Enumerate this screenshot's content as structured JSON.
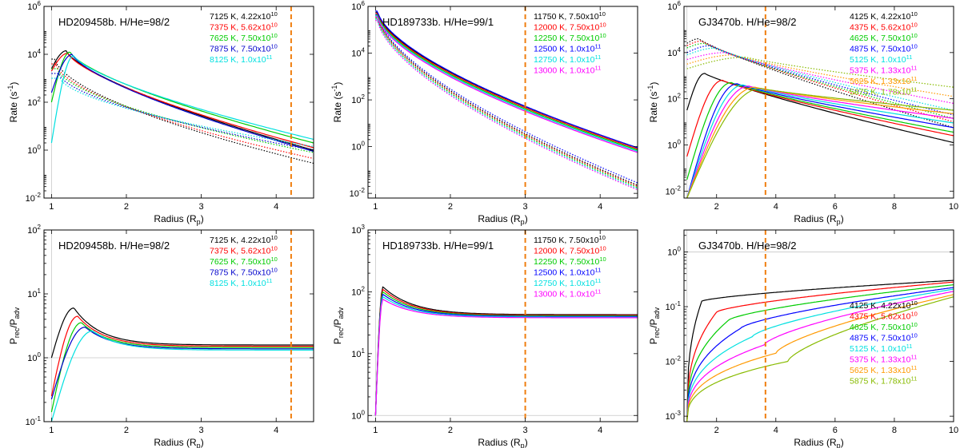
{
  "chart_data": [
    {
      "id": "p1",
      "type": "line",
      "yscale": "log",
      "title": "HD209458b. H/He=98/2",
      "xlabel": "Radius (R",
      "xlabel_sub": "p",
      "xlabel_end": ")",
      "ylabel": "Rate (s",
      "ylabel_sup": "-1",
      "ylabel_end": ")",
      "xlim": [
        0.9,
        4.5
      ],
      "ylim": [
        -2,
        6
      ],
      "xticks": [
        1,
        2,
        3,
        4
      ],
      "yticks": [
        -2,
        0,
        2,
        4,
        6
      ],
      "vline": 4.2,
      "refline_x": 1.0,
      "refline_y": null,
      "legend_pos": "top-right",
      "series": [
        {
          "name": "7125 K, 4.22x10",
          "exp": "10",
          "color": "#000000",
          "solid": {
            "peak_x": 1.2,
            "peak_y": 4.15,
            "start_y": 3.4,
            "end_y": 0.0,
            "width": 0.5,
            "plat": 0
          },
          "dotted": {
            "peak_x": 1.05,
            "peak_y": 3.8,
            "start_y": 3.8,
            "end_y": -0.55,
            "width": 0.2,
            "plat": 0
          }
        },
        {
          "name": "7375 K, 5.62x10",
          "exp": "10",
          "color": "#ff0000",
          "solid": {
            "peak_x": 1.22,
            "peak_y": 4.05,
            "start_y": 3.3,
            "end_y": 0.1,
            "width": 0.5,
            "plat": 0
          },
          "dotted": {
            "peak_x": 1.06,
            "peak_y": 3.6,
            "start_y": 3.6,
            "end_y": -0.35,
            "width": 0.2,
            "plat": 0
          }
        },
        {
          "name": "7625 K, 7.50x10",
          "exp": "10",
          "color": "#00cc00",
          "solid": {
            "peak_x": 1.25,
            "peak_y": 4.1,
            "start_y": 2.0,
            "end_y": 0.3,
            "width": 0.5,
            "plat": 0
          },
          "dotted": {
            "peak_x": 1.08,
            "peak_y": 3.4,
            "start_y": 3.4,
            "end_y": -0.1,
            "width": 0.2,
            "plat": 0
          }
        },
        {
          "name": "7875 K, 7.50x10",
          "exp": "10",
          "color": "#0000cc",
          "solid": {
            "peak_x": 1.28,
            "peak_y": 4.0,
            "start_y": 2.4,
            "end_y": -0.05,
            "width": 0.5,
            "plat": 0
          },
          "dotted": {
            "peak_x": 1.1,
            "peak_y": 3.2,
            "start_y": 3.2,
            "end_y": 0.0,
            "width": 0.2,
            "plat": 0
          }
        },
        {
          "name": "8125 K, 1.0x10",
          "exp": "11",
          "color": "#00e0e0",
          "solid": {
            "peak_x": 1.3,
            "peak_y": 3.95,
            "start_y": 0.3,
            "end_y": 0.45,
            "width": 0.5,
            "plat": 0
          },
          "dotted": {
            "peak_x": 1.12,
            "peak_y": 3.0,
            "start_y": 3.0,
            "end_y": 0.15,
            "width": 0.2,
            "plat": 0
          }
        }
      ]
    },
    {
      "id": "p2",
      "type": "line",
      "yscale": "log",
      "title": "HD189733b. H/He=99/1",
      "xlabel": "Radius (R",
      "xlabel_sub": "p",
      "xlabel_end": ")",
      "ylabel": "Rate (s",
      "ylabel_sup": "-1",
      "ylabel_end": ")",
      "xlim": [
        0.9,
        4.5
      ],
      "ylim": [
        -2.2,
        6
      ],
      "xticks": [
        1,
        2,
        3,
        4
      ],
      "yticks": [
        -2,
        0,
        2,
        4,
        6
      ],
      "vline": 3.0,
      "refline_x": 1.0,
      "refline_y": null,
      "legend_pos": "top-right",
      "series": [
        {
          "name": "11750 K, 7.50x10",
          "exp": "10",
          "color": "#000000",
          "solid": {
            "peak_x": 1.03,
            "peak_y": 5.75,
            "start_y": 5.75,
            "end_y": -0.05,
            "width": 0.3,
            "plat": 0
          },
          "dotted": {
            "peak_x": 1.03,
            "peak_y": 5.6,
            "start_y": 5.6,
            "end_y": -1.65,
            "width": 0.3,
            "plat": 0
          }
        },
        {
          "name": "12000 K, 7.50x10",
          "exp": "10",
          "color": "#ff0000",
          "solid": {
            "peak_x": 1.03,
            "peak_y": 5.7,
            "start_y": 5.7,
            "end_y": -0.1,
            "width": 0.3,
            "plat": 0
          },
          "dotted": {
            "peak_x": 1.03,
            "peak_y": 5.55,
            "start_y": 5.55,
            "end_y": -1.7,
            "width": 0.3,
            "plat": 0
          }
        },
        {
          "name": "12250 K, 7.50x10",
          "exp": "10",
          "color": "#00cc00",
          "solid": {
            "peak_x": 1.03,
            "peak_y": 5.65,
            "start_y": 5.65,
            "end_y": -0.15,
            "width": 0.3,
            "plat": 0
          },
          "dotted": {
            "peak_x": 1.03,
            "peak_y": 5.5,
            "start_y": 5.5,
            "end_y": -1.75,
            "width": 0.3,
            "plat": 0
          }
        },
        {
          "name": "12500 K, 1.0x10",
          "exp": "11",
          "color": "#0000ff",
          "solid": {
            "peak_x": 1.03,
            "peak_y": 5.8,
            "start_y": 5.8,
            "end_y": -0.05,
            "width": 0.3,
            "plat": 0
          },
          "dotted": {
            "peak_x": 1.03,
            "peak_y": 5.65,
            "start_y": 5.65,
            "end_y": -1.55,
            "width": 0.3,
            "plat": 0
          }
        },
        {
          "name": "12750 K, 1.0x10",
          "exp": "11",
          "color": "#00e0e0",
          "solid": {
            "peak_x": 1.03,
            "peak_y": 5.6,
            "start_y": 5.6,
            "end_y": -0.2,
            "width": 0.3,
            "plat": 0
          },
          "dotted": {
            "peak_x": 1.03,
            "peak_y": 5.45,
            "start_y": 5.45,
            "end_y": -1.8,
            "width": 0.3,
            "plat": 0
          }
        },
        {
          "name": "13000 K, 1.0x10",
          "exp": "11",
          "color": "#ff00ff",
          "solid": {
            "peak_x": 1.03,
            "peak_y": 5.55,
            "start_y": 5.55,
            "end_y": -0.25,
            "width": 0.3,
            "plat": 0
          },
          "dotted": {
            "peak_x": 1.03,
            "peak_y": 5.4,
            "start_y": 5.4,
            "end_y": -1.85,
            "width": 0.3,
            "plat": 0
          }
        }
      ]
    },
    {
      "id": "p3",
      "type": "line",
      "yscale": "log",
      "title": "GJ3470b. H/He=98/2",
      "xlabel": "Radius (R",
      "xlabel_sub": "p",
      "xlabel_end": ")",
      "ylabel": "Rate (s",
      "ylabel_sup": "-1",
      "ylabel_end": ")",
      "xlim": [
        0.9,
        10
      ],
      "ylim": [
        -2.3,
        6
      ],
      "xticks": [
        2,
        4,
        6,
        8,
        10
      ],
      "yticks": [
        -2,
        0,
        2,
        4,
        6
      ],
      "vline": 3.65,
      "refline_x": 1.0,
      "refline_y": null,
      "legend_pos": "top-right",
      "series": [
        {
          "name": "4125 K, 4.22x10",
          "exp": "10",
          "color": "#000000",
          "solid": {
            "peak_x": 1.6,
            "peak_y": 3.1,
            "start_y": 1.5,
            "end_y": 0.1,
            "width": 3.0,
            "plat": 0
          },
          "dotted": {
            "peak_x": 1.4,
            "peak_y": 4.6,
            "start_y": 4.4,
            "end_y": 0.75,
            "width": 2.2,
            "plat": 0
          }
        },
        {
          "name": "4375 K, 5.62x10",
          "exp": "10",
          "color": "#ff0000",
          "solid": {
            "peak_x": 2.2,
            "peak_y": 2.8,
            "start_y": -0.5,
            "end_y": 0.4,
            "width": 3.0,
            "plat": 0
          },
          "dotted": {
            "peak_x": 1.5,
            "peak_y": 4.5,
            "start_y": 4.3,
            "end_y": 1.0,
            "width": 2.5,
            "plat": 0
          }
        },
        {
          "name": "4625 K, 7.50x10",
          "exp": "10",
          "color": "#00cc00",
          "solid": {
            "peak_x": 2.5,
            "peak_y": 2.7,
            "start_y": -1.5,
            "end_y": 0.55,
            "width": 3.0,
            "plat": 0
          },
          "dotted": {
            "peak_x": 1.6,
            "peak_y": 4.4,
            "start_y": 4.2,
            "end_y": 1.15,
            "width": 2.6,
            "plat": 0
          }
        },
        {
          "name": "4875 K, 7.50x10",
          "exp": "10",
          "color": "#0000ff",
          "solid": {
            "peak_x": 2.7,
            "peak_y": 2.65,
            "start_y": -2.3,
            "end_y": 0.75,
            "width": 3.0,
            "plat": 0
          },
          "dotted": {
            "peak_x": 1.8,
            "peak_y": 4.3,
            "start_y": 4.0,
            "end_y": 1.3,
            "width": 2.8,
            "plat": 0
          }
        },
        {
          "name": "5125 K, 1.0x10",
          "exp": "11",
          "color": "#00e0e0",
          "solid": {
            "peak_x": 2.9,
            "peak_y": 2.6,
            "start_y": -2.3,
            "end_y": 0.95,
            "width": 3.0,
            "plat": 0
          },
          "dotted": {
            "peak_x": 2.0,
            "peak_y": 4.2,
            "start_y": 3.9,
            "end_y": 1.5,
            "width": 3.0,
            "plat": 0
          }
        },
        {
          "name": "5375 K, 1.33x10",
          "exp": "11",
          "color": "#ff00ff",
          "solid": {
            "peak_x": 3.1,
            "peak_y": 2.55,
            "start_y": -2.3,
            "end_y": 1.15,
            "width": 3.0,
            "plat": 0
          },
          "dotted": {
            "peak_x": 2.3,
            "peak_y": 4.0,
            "start_y": 3.7,
            "end_y": 1.8,
            "width": 3.2,
            "plat": 0
          }
        },
        {
          "name": "5625 K, 1.33x10",
          "exp": "11",
          "color": "#ff9900",
          "solid": {
            "peak_x": 3.3,
            "peak_y": 2.5,
            "start_y": -2.3,
            "end_y": 1.35,
            "width": 3.0,
            "plat": 0
          },
          "dotted": {
            "peak_x": 2.6,
            "peak_y": 3.9,
            "start_y": 3.5,
            "end_y": 2.1,
            "width": 3.4,
            "plat": 0
          }
        },
        {
          "name": "5875 K, 1.78x10",
          "exp": "11",
          "color": "#88bb00",
          "solid": {
            "peak_x": 3.5,
            "peak_y": 2.45,
            "start_y": -2.3,
            "end_y": 1.5,
            "width": 3.0,
            "plat": 0
          },
          "dotted": {
            "peak_x": 3.0,
            "peak_y": 3.8,
            "start_y": 3.3,
            "end_y": 2.5,
            "width": 3.6,
            "plat": 0
          }
        }
      ]
    },
    {
      "id": "p4",
      "type": "line",
      "yscale": "log",
      "title": "HD209458b. H/He=98/2",
      "xlabel": "Radius (R",
      "xlabel_sub": "p",
      "xlabel_end": ")",
      "ylabel": "P",
      "ylabel_sub": "rec",
      "ylabel_mid": "/P",
      "ylabel_sub2": "adv",
      "xlim": [
        0.9,
        4.5
      ],
      "ylim": [
        -1,
        2
      ],
      "xticks": [
        1,
        2,
        3,
        4
      ],
      "yticks": [
        -1,
        0,
        1,
        2
      ],
      "vline": 4.2,
      "refline_x": 1.0,
      "refline_y": 0,
      "legend_pos": "top-right",
      "series": [
        {
          "name": "7125 K, 4.22x10",
          "exp": "10",
          "color": "#000000",
          "solid": {
            "peak_x": 1.3,
            "peak_y": 0.78,
            "start_y": 0.0,
            "end_y": 0.2,
            "width": 0.35,
            "plat": 0.2
          }
        },
        {
          "name": "7375 K, 5.62x10",
          "exp": "10",
          "color": "#ff0000",
          "solid": {
            "peak_x": 1.35,
            "peak_y": 0.65,
            "start_y": -0.6,
            "end_y": 0.18,
            "width": 0.35,
            "plat": 0.18
          }
        },
        {
          "name": "7625 K, 7.50x10",
          "exp": "10",
          "color": "#00cc00",
          "solid": {
            "peak_x": 1.4,
            "peak_y": 0.55,
            "start_y": -0.85,
            "end_y": 0.16,
            "width": 0.35,
            "plat": 0.16
          }
        },
        {
          "name": "7875 K, 7.50x10",
          "exp": "10",
          "color": "#0000cc",
          "solid": {
            "peak_x": 1.45,
            "peak_y": 0.48,
            "start_y": -0.65,
            "end_y": 0.14,
            "width": 0.35,
            "plat": 0.14
          }
        },
        {
          "name": "8125 K, 1.0x10",
          "exp": "11",
          "color": "#00e0e0",
          "solid": {
            "peak_x": 1.55,
            "peak_y": 0.42,
            "start_y": -1.0,
            "end_y": 0.12,
            "width": 0.35,
            "plat": 0.12
          }
        }
      ]
    },
    {
      "id": "p5",
      "type": "line",
      "yscale": "log",
      "title": "HD189733b. H/He=99/1",
      "xlabel": "Radius (R",
      "xlabel_sub": "p",
      "xlabel_end": ")",
      "ylabel": "P",
      "ylabel_sub": "rec",
      "ylabel_mid": "/P",
      "ylabel_sub2": "adv",
      "xlim": [
        0.9,
        4.5
      ],
      "ylim": [
        -0.1,
        3
      ],
      "xticks": [
        1,
        2,
        3,
        4
      ],
      "yticks": [
        0,
        1,
        2,
        3
      ],
      "vline": 3.0,
      "refline_x": 1.0,
      "refline_y": 0,
      "legend_pos": "top-right",
      "series": [
        {
          "name": "11750 K, 7.50x10",
          "exp": "10",
          "color": "#000000",
          "solid": {
            "peak_x": 1.1,
            "peak_y": 2.08,
            "start_y": 0.0,
            "end_y": 1.63,
            "width": 0.4,
            "plat": 1.58
          }
        },
        {
          "name": "12000 K, 7.50x10",
          "exp": "10",
          "color": "#ff0000",
          "solid": {
            "peak_x": 1.1,
            "peak_y": 2.04,
            "start_y": 0.0,
            "end_y": 1.62,
            "width": 0.4,
            "plat": 1.58
          }
        },
        {
          "name": "12250 K, 7.50x10",
          "exp": "10",
          "color": "#00cc00",
          "solid": {
            "peak_x": 1.1,
            "peak_y": 2.0,
            "start_y": 0.0,
            "end_y": 1.61,
            "width": 0.4,
            "plat": 1.57
          }
        },
        {
          "name": "12500 K, 1.0x10",
          "exp": "11",
          "color": "#0000ff",
          "solid": {
            "peak_x": 1.1,
            "peak_y": 1.96,
            "start_y": 0.0,
            "end_y": 1.6,
            "width": 0.4,
            "plat": 1.56
          }
        },
        {
          "name": "12750 K, 1.0x10",
          "exp": "11",
          "color": "#00e0e0",
          "solid": {
            "peak_x": 1.1,
            "peak_y": 1.92,
            "start_y": 0.0,
            "end_y": 1.59,
            "width": 0.4,
            "plat": 1.56
          }
        },
        {
          "name": "13000 K, 1.0x10",
          "exp": "11",
          "color": "#ff00ff",
          "solid": {
            "peak_x": 1.1,
            "peak_y": 1.88,
            "start_y": 0.0,
            "end_y": 1.58,
            "width": 0.4,
            "plat": 1.55
          }
        }
      ]
    },
    {
      "id": "p6",
      "type": "line",
      "yscale": "log",
      "title": "GJ3470b. H/He=98/2",
      "xlabel": "Radius (R",
      "xlabel_sub": "p",
      "xlabel_end": ")",
      "ylabel": "P",
      "ylabel_sub": "rec",
      "ylabel_mid": "/P",
      "ylabel_sub2": "adv",
      "xlim": [
        0.9,
        10
      ],
      "ylim": [
        -3.1,
        0.4
      ],
      "xticks": [
        2,
        4,
        6,
        8,
        10
      ],
      "yticks": [
        -3,
        -2,
        -1,
        0
      ],
      "vline": 3.65,
      "refline_x": 1.0,
      "refline_y": 0,
      "legend_pos": "center-right",
      "series": [
        {
          "name": "4125 K, 4.22x10",
          "exp": "10",
          "color": "#000000",
          "solid": {
            "rise_end": 1.5,
            "rise_y": -0.9,
            "start_y": -3.1,
            "end_y": -0.52
          }
        },
        {
          "name": "4375 K, 5.62x10",
          "exp": "10",
          "color": "#ff0000",
          "solid": {
            "rise_end": 2.0,
            "rise_y": -1.1,
            "start_y": -3.1,
            "end_y": -0.55
          }
        },
        {
          "name": "4625 K, 7.50x10",
          "exp": "10",
          "color": "#00cc00",
          "solid": {
            "rise_end": 2.4,
            "rise_y": -1.25,
            "start_y": -3.1,
            "end_y": -0.6
          }
        },
        {
          "name": "4875 K, 7.50x10",
          "exp": "10",
          "color": "#0000ff",
          "solid": {
            "rise_end": 2.8,
            "rise_y": -1.4,
            "start_y": -3.1,
            "end_y": -0.65
          }
        },
        {
          "name": "5125 K, 1.0x10",
          "exp": "11",
          "color": "#00e0e0",
          "solid": {
            "rise_end": 3.2,
            "rise_y": -1.55,
            "start_y": -3.1,
            "end_y": -0.68
          }
        },
        {
          "name": "5375 K, 1.33x10",
          "exp": "11",
          "color": "#ff00ff",
          "solid": {
            "rise_end": 3.6,
            "rise_y": -1.7,
            "start_y": -3.1,
            "end_y": -0.72
          }
        },
        {
          "name": "5625 K, 1.33x10",
          "exp": "11",
          "color": "#ff9900",
          "solid": {
            "rise_end": 4.0,
            "rise_y": -1.85,
            "start_y": -3.1,
            "end_y": -0.78
          }
        },
        {
          "name": "5875 K, 1.78x10",
          "exp": "11",
          "color": "#88bb00",
          "solid": {
            "rise_end": 4.4,
            "rise_y": -2.0,
            "start_y": -3.1,
            "end_y": -0.82
          }
        }
      ]
    }
  ]
}
